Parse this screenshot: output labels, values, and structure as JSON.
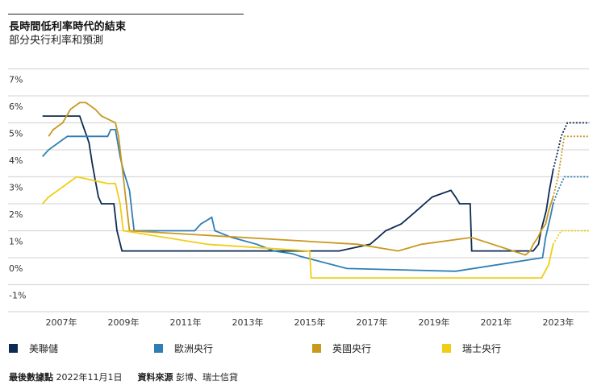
{
  "header": {
    "title": "長時間低利率時代的結束",
    "subtitle": "部分央行利率和預測"
  },
  "legend": [
    {
      "label": "美聯儲",
      "color": "#0d2b52"
    },
    {
      "label": "歐洲央行",
      "color": "#2f7fb5"
    },
    {
      "label": "英國央行",
      "color": "#c9981f"
    },
    {
      "label": "瑞士央行",
      "color": "#f2cd15"
    }
  ],
  "footer": {
    "last_data_label": "最後數據點",
    "last_data_value": "2022年11月1日",
    "source_label": "資料來源",
    "source_value": "彭博、瑞士信貸"
  },
  "chart_data": {
    "type": "line",
    "title": "長時間低利率時代的結束",
    "subtitle": "部分央行利率和預測",
    "xlabel": "",
    "ylabel": "",
    "ylim": [
      -1,
      7
    ],
    "xlim": [
      2006.1,
      2024.1
    ],
    "grid": true,
    "legend_position": "bottom",
    "y_ticks": [
      "7%",
      "6%",
      "5%",
      "4%",
      "3%",
      "2%",
      "1%",
      "0%",
      "-1%"
    ],
    "y_tick_values": [
      7,
      6,
      5,
      4,
      3,
      2,
      1,
      0,
      -1
    ],
    "x_ticks": [
      "2007年",
      "2009年",
      "2011年",
      "2013年",
      "2015年",
      "2017年",
      "2019年",
      "2021年",
      "2023年"
    ],
    "x_tick_values": [
      2007,
      2009,
      2011,
      2013,
      2015,
      2017,
      2019,
      2021,
      2023
    ],
    "forecast_start": 2022.84,
    "series": [
      {
        "name": "美聯儲",
        "color": "#0d2b52",
        "x": [
          2006.4,
          2007.6,
          2007.75,
          2007.83,
          2007.9,
          2008.0,
          2008.08,
          2008.2,
          2008.3,
          2008.7,
          2008.8,
          2008.96,
          2015.95,
          2016.95,
          2017.2,
          2017.45,
          2017.95,
          2018.2,
          2018.45,
          2018.7,
          2018.95,
          2019.55,
          2019.7,
          2019.83,
          2020.17,
          2020.22,
          2022.2,
          2022.37,
          2022.45,
          2022.62,
          2022.72,
          2022.84,
          2023.0,
          2023.1,
          2023.3,
          2024.0
        ],
        "y": [
          5.25,
          5.25,
          4.75,
          4.5,
          4.25,
          3.5,
          3.0,
          2.25,
          2.0,
          2.0,
          1.0,
          0.25,
          0.25,
          0.5,
          0.75,
          1.0,
          1.25,
          1.5,
          1.75,
          2.0,
          2.25,
          2.5,
          2.25,
          2.0,
          2.0,
          0.25,
          0.25,
          0.5,
          1.0,
          1.75,
          2.5,
          3.25,
          4.0,
          4.5,
          5.0,
          5.0
        ]
      },
      {
        "name": "歐洲央行",
        "color": "#2f7fb5",
        "x": [
          2006.4,
          2006.6,
          2006.9,
          2007.2,
          2007.5,
          2008.5,
          2008.6,
          2008.75,
          2008.9,
          2009.0,
          2009.2,
          2009.35,
          2011.3,
          2011.5,
          2011.85,
          2011.95,
          2012.5,
          2013.3,
          2013.85,
          2014.45,
          2014.7,
          2016.2,
          2019.7,
          2022.5,
          2022.6,
          2022.75,
          2022.84,
          2023.0,
          2023.2,
          2024.0
        ],
        "y": [
          3.75,
          4.0,
          4.25,
          4.5,
          4.5,
          4.5,
          4.75,
          4.75,
          3.75,
          3.25,
          2.5,
          1.0,
          1.0,
          1.25,
          1.5,
          1.0,
          0.75,
          0.5,
          0.25,
          0.15,
          0.05,
          -0.4,
          -0.5,
          0.0,
          0.75,
          1.5,
          2.0,
          2.5,
          3.0,
          3.0
        ]
      },
      {
        "name": "英國央行",
        "color": "#c9981f",
        "x": [
          2006.6,
          2006.75,
          2007.05,
          2007.3,
          2007.6,
          2007.8,
          2008.1,
          2008.3,
          2008.75,
          2008.85,
          2009.0,
          2009.1,
          2009.2,
          2016.55,
          2017.85,
          2018.6,
          2020.2,
          2020.22,
          2021.95,
          2022.1,
          2022.2,
          2022.35,
          2022.45,
          2022.6,
          2022.7,
          2022.84,
          2023.0,
          2023.2,
          2024.0
        ],
        "y": [
          4.5,
          4.75,
          5.0,
          5.5,
          5.75,
          5.75,
          5.5,
          5.25,
          5.0,
          4.5,
          3.0,
          2.0,
          1.0,
          0.5,
          0.25,
          0.5,
          0.75,
          0.75,
          0.1,
          0.25,
          0.5,
          0.75,
          1.0,
          1.25,
          1.75,
          2.25,
          3.0,
          4.5,
          4.5
        ]
      },
      {
        "name": "瑞士央行",
        "color": "#f2cd15",
        "x": [
          2006.4,
          2006.6,
          2006.9,
          2007.2,
          2007.5,
          2008.5,
          2008.75,
          2008.9,
          2009.0,
          2011.7,
          2015.0,
          2015.05,
          2022.47,
          2022.7,
          2022.84,
          2023.1,
          2024.0
        ],
        "y": [
          2.0,
          2.25,
          2.5,
          2.75,
          3.0,
          2.75,
          2.75,
          2.0,
          1.0,
          0.5,
          0.25,
          -0.75,
          -0.75,
          -0.25,
          0.5,
          1.0,
          1.0
        ]
      }
    ]
  }
}
